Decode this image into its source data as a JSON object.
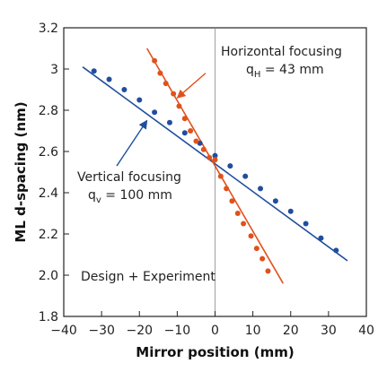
{
  "chart_data": {
    "type": "scatter",
    "xlabel": "Mirror position (mm)",
    "ylabel": "ML d-spacing (nm)",
    "xlim": [
      -40,
      40
    ],
    "ylim": [
      1.8,
      3.2
    ],
    "x_ticks": [
      -40,
      -30,
      -20,
      -10,
      0,
      10,
      20,
      30,
      40
    ],
    "x_tick_labels": [
      "−40",
      "−30",
      "−20",
      "−10",
      "0",
      "10",
      "20",
      "30",
      "40"
    ],
    "y_ticks": [
      1.8,
      2.0,
      2.2,
      2.4,
      2.6,
      2.8,
      3.0,
      3.2
    ],
    "y_tick_labels": [
      "1.8",
      "2.0",
      "2.2",
      "2.4",
      "2.6",
      "2.8",
      "3",
      "3.2"
    ],
    "grid": false,
    "series": [
      {
        "color": "#1f4e9e",
        "points": [
          [
            -32,
            2.99
          ],
          [
            -28,
            2.95
          ],
          [
            -24,
            2.9
          ],
          [
            -20,
            2.85
          ],
          [
            -16,
            2.79
          ],
          [
            -12,
            2.74
          ],
          [
            -8,
            2.69
          ],
          [
            -4,
            2.64
          ],
          [
            0,
            2.58
          ],
          [
            4,
            2.53
          ],
          [
            8,
            2.48
          ],
          [
            12,
            2.42
          ],
          [
            16,
            2.36
          ],
          [
            20,
            2.31
          ],
          [
            24,
            2.25
          ],
          [
            28,
            2.18
          ],
          [
            32,
            2.12
          ]
        ],
        "fit": [
          [
            -35,
            3.01
          ],
          [
            35,
            2.07
          ]
        ]
      },
      {
        "color": "#e0521c",
        "points": [
          [
            -16,
            3.04
          ],
          [
            -14.5,
            2.98
          ],
          [
            -13,
            2.93
          ],
          [
            -11,
            2.88
          ],
          [
            -9.5,
            2.82
          ],
          [
            -8,
            2.76
          ],
          [
            -6.5,
            2.7
          ],
          [
            -5,
            2.65
          ],
          [
            -3,
            2.61
          ],
          [
            -1.5,
            2.57
          ],
          [
            0,
            2.56
          ],
          [
            1.5,
            2.48
          ],
          [
            3,
            2.42
          ],
          [
            4.5,
            2.36
          ],
          [
            6,
            2.3
          ],
          [
            7.5,
            2.25
          ],
          [
            9.5,
            2.19
          ],
          [
            11,
            2.13
          ],
          [
            12.5,
            2.08
          ],
          [
            14,
            2.02
          ]
        ],
        "fit": [
          [
            -18,
            3.1
          ],
          [
            18,
            1.96
          ]
        ]
      }
    ],
    "annotations": [
      {
        "lines": [
          "Horizontal focusing",
          "q_H = 43 mm"
        ],
        "arrow_from": [
          -2.5,
          2.98
        ],
        "arrow_to": [
          -10,
          2.86
        ]
      },
      {
        "lines": [
          "Vertical focusing",
          "q_v = 100 mm"
        ],
        "arrow_from": [
          -26,
          2.53
        ],
        "arrow_to": [
          -18,
          2.75
        ]
      },
      {
        "lines": [
          "Design + Experiment"
        ]
      }
    ]
  },
  "labels": {
    "horizontal_line1": "Horizontal focusing",
    "horizontal_q": "q",
    "horizontal_sub": "H",
    "horizontal_val": " = 43 mm",
    "vertical_line1": "Vertical focusing",
    "vertical_q": "q",
    "vertical_sub": "v",
    "vertical_val": " = 100 mm",
    "design": "Design + Experiment"
  }
}
